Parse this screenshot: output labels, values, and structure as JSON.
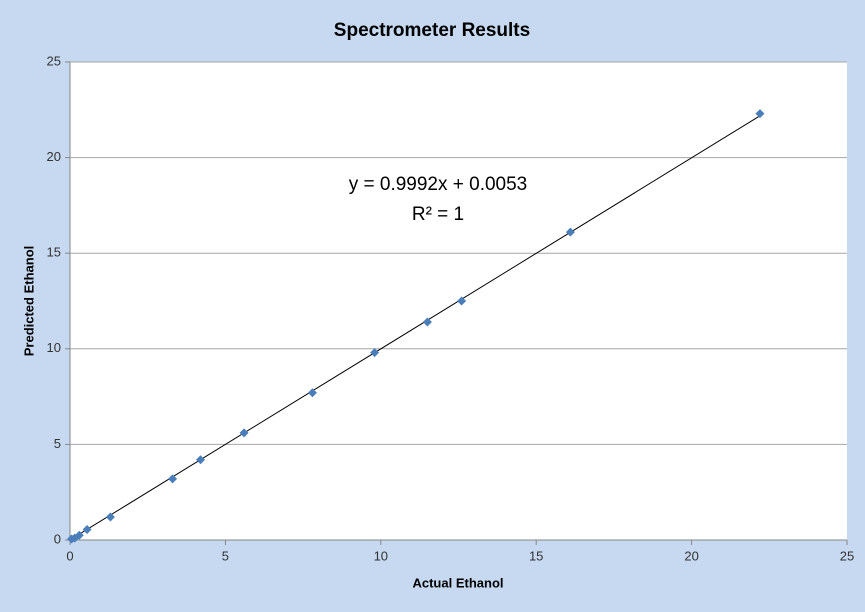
{
  "chart_data": {
    "type": "scatter",
    "title": "Spectrometer Results",
    "x_label": "Actual Ethanol",
    "y_label": "Predicted Ethanol",
    "series": [
      {
        "name": "Predicted Ethanol",
        "color": "#4a7ebb",
        "x": [
          0.05,
          0.15,
          0.3,
          0.55,
          1.3,
          3.3,
          4.2,
          5.6,
          7.8,
          9.8,
          11.5,
          12.6,
          16.1,
          22.2
        ],
        "values": [
          0.05,
          0.1,
          0.25,
          0.55,
          1.2,
          3.2,
          4.2,
          5.6,
          7.7,
          9.8,
          11.4,
          12.5,
          16.1,
          22.3
        ]
      }
    ],
    "trendline": {
      "slope": 0.9992,
      "intercept": 0.0053,
      "equation": "y = 0.9992x + 0.0053",
      "r_squared": "R² = 1",
      "color": "#000000"
    },
    "xlim": [
      0,
      25
    ],
    "xticks": [
      0,
      5,
      10,
      15,
      20,
      25
    ],
    "ylim": [
      0,
      25
    ],
    "yticks": [
      0,
      5,
      10,
      15,
      20,
      25
    ],
    "grid": true
  }
}
